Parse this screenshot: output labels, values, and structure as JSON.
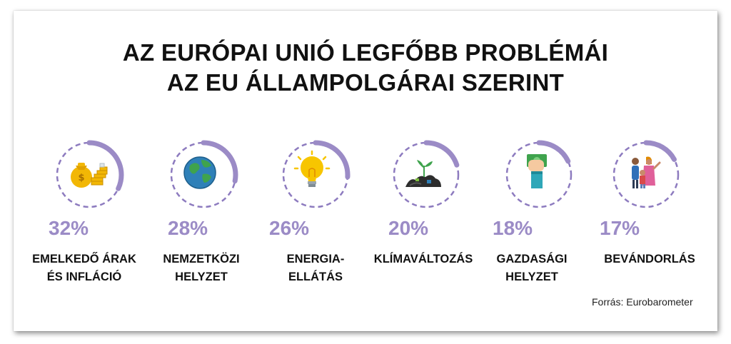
{
  "title": {
    "line1": "AZ EURÓPAI UNIÓ LEGFŐBB PROBLÉMÁI",
    "line2": "AZ EU ÁLLAMPOLGÁRAI SZERINT"
  },
  "source": "Forrás: Eurobarometer",
  "colors": {
    "accent": "#9b8bc6",
    "ring_dash": "#8d7bbf",
    "text": "#111111"
  },
  "chart_data": {
    "type": "radial-progress",
    "title": "AZ EURÓPAI UNIÓ LEGFŐBB PROBLÉMÁI AZ EU ÁLLAMPOLGÁRAI SZERINT",
    "unit": "%",
    "categories": [
      "EMELKEDŐ ÁRAK ÉS INFLÁCIÓ",
      "NEMZETKÖZI HELYZET",
      "ENERGIA-ELLÁTÁS",
      "KLÍMAVÁLTOZÁS",
      "GAZDASÁGI HELYZET",
      "BEVÁNDORLÁS"
    ],
    "values": [
      32,
      28,
      26,
      20,
      18,
      17
    ]
  },
  "items": [
    {
      "pct": "32%",
      "value": 32,
      "label1": "EMELKEDŐ ÁRAK",
      "label2": "ÉS INFLÁCIÓ",
      "icon": "money-bag-coins-icon"
    },
    {
      "pct": "28%",
      "value": 28,
      "label1": "NEMZETKÖZI",
      "label2": "HELYZET",
      "icon": "globe-icon"
    },
    {
      "pct": "26%",
      "value": 26,
      "label1": "ENERGIA-",
      "label2": "ELLÁTÁS",
      "icon": "lightbulb-icon"
    },
    {
      "pct": "20%",
      "value": 20,
      "label1": "KLÍMAVÁLTOZÁS",
      "label2": "",
      "icon": "sprout-in-trash-icon"
    },
    {
      "pct": "18%",
      "value": 18,
      "label1": "GAZDASÁGI",
      "label2": "HELYZET",
      "icon": "hand-holding-money-icon"
    },
    {
      "pct": "17%",
      "value": 17,
      "label1": "BEVÁNDORLÁS",
      "label2": "",
      "icon": "migrant-family-icon"
    }
  ]
}
